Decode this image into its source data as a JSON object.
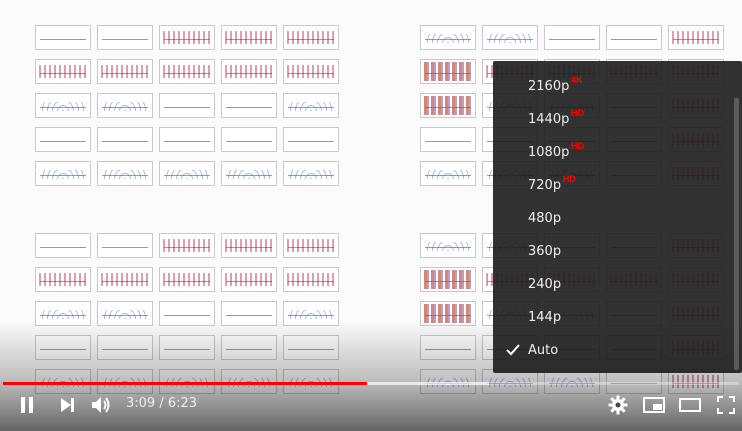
{
  "player": {
    "quality_menu": {
      "items": [
        {
          "label": "2160p",
          "badge": "4K",
          "selected": false
        },
        {
          "label": "1440p",
          "badge": "HD",
          "selected": false
        },
        {
          "label": "1080p",
          "badge": "HD",
          "selected": false
        },
        {
          "label": "720p",
          "badge": "HD",
          "selected": false
        },
        {
          "label": "480p",
          "badge": "",
          "selected": false
        },
        {
          "label": "360p",
          "badge": "",
          "selected": false
        },
        {
          "label": "240p",
          "badge": "",
          "selected": false
        },
        {
          "label": "144p",
          "badge": "",
          "selected": false
        },
        {
          "label": "Auto",
          "badge": "",
          "selected": true
        }
      ]
    },
    "progress": {
      "played_fraction": 0.495,
      "loaded_fraction": 0.66
    },
    "time": {
      "current": "3:09",
      "separator": "/",
      "duration": "6:23",
      "display": "3:09 / 6:23"
    },
    "icons": {
      "play_pause": "pause-icon",
      "next": "next-icon",
      "volume": "volume-icon",
      "settings": "gear-icon",
      "miniplayer": "miniplayer-icon",
      "theater": "theater-icon",
      "fullscreen": "fullscreen-icon"
    },
    "colors": {
      "played": "#ff0000",
      "badge": "#ff0000",
      "menu_bg": "#1c1c1c",
      "text": "#eeeeee"
    }
  }
}
